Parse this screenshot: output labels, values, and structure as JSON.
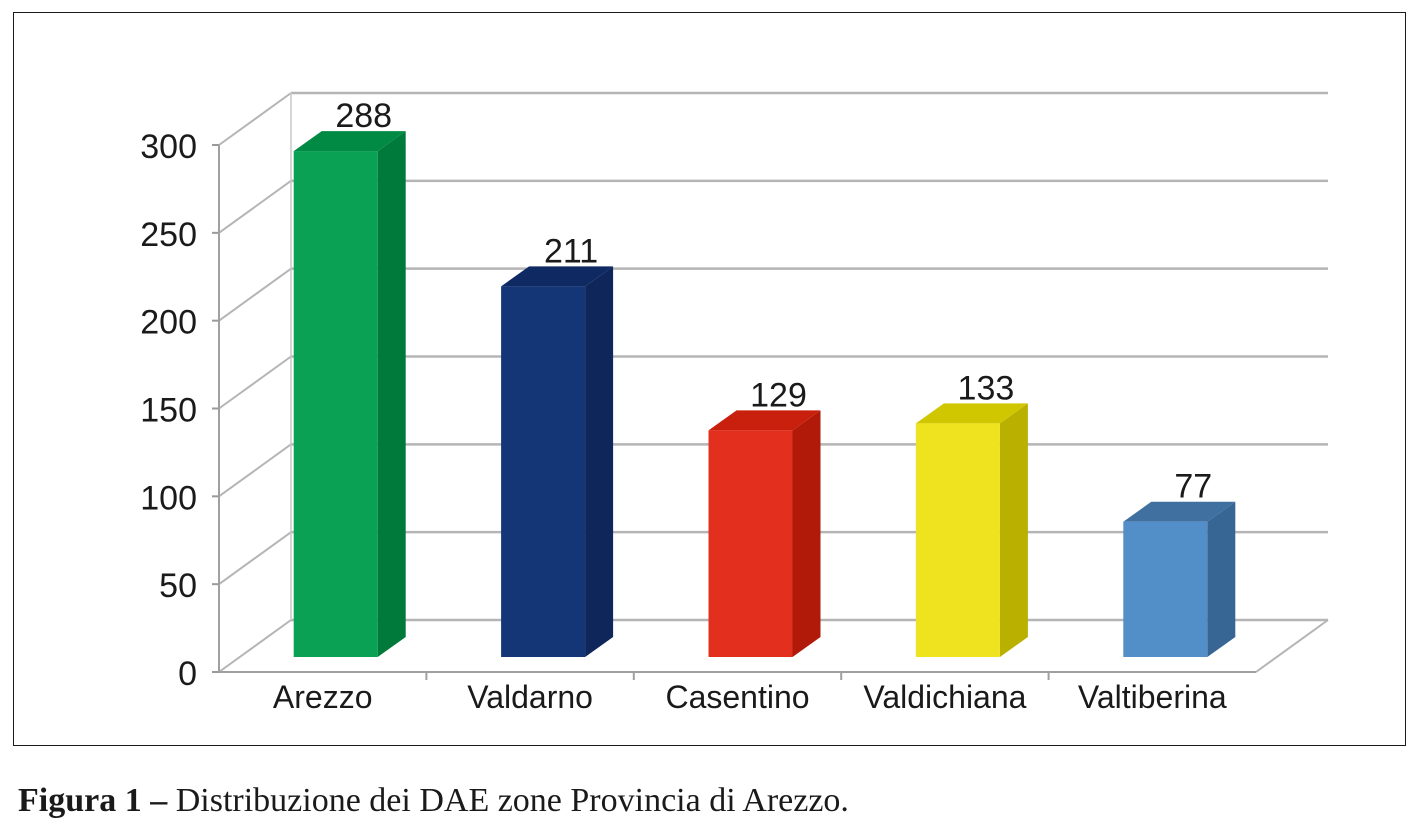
{
  "chart_data": {
    "type": "bar",
    "style": "3d",
    "categories": [
      "Arezzo",
      "Valdarno",
      "Casentino",
      "Valdichiana",
      "Valtiberina"
    ],
    "values": [
      288,
      211,
      129,
      133,
      77
    ],
    "bar_colors": [
      {
        "front": "#0aa155",
        "side": "#007a3b",
        "top": "#008a44"
      },
      {
        "front": "#143676",
        "side": "#0e2659",
        "top": "#0f2a63"
      },
      {
        "front": "#e3301e",
        "side": "#b11a08",
        "top": "#c8200c"
      },
      {
        "front": "#efe21f",
        "side": "#b9b000",
        "top": "#d1c700"
      },
      {
        "front": "#528ec8",
        "side": "#376594",
        "top": "#4070a0"
      }
    ],
    "title": "",
    "xlabel": "",
    "ylabel": "",
    "ylim": [
      0,
      300
    ],
    "yticks": [
      0,
      50,
      100,
      150,
      200,
      250,
      300
    ],
    "grid": true,
    "data_labels": true,
    "legend": "none"
  },
  "caption": {
    "prefix": "Figura 1 –",
    "text": " Distribuzione dei DAE zone Provincia di Arezzo."
  }
}
